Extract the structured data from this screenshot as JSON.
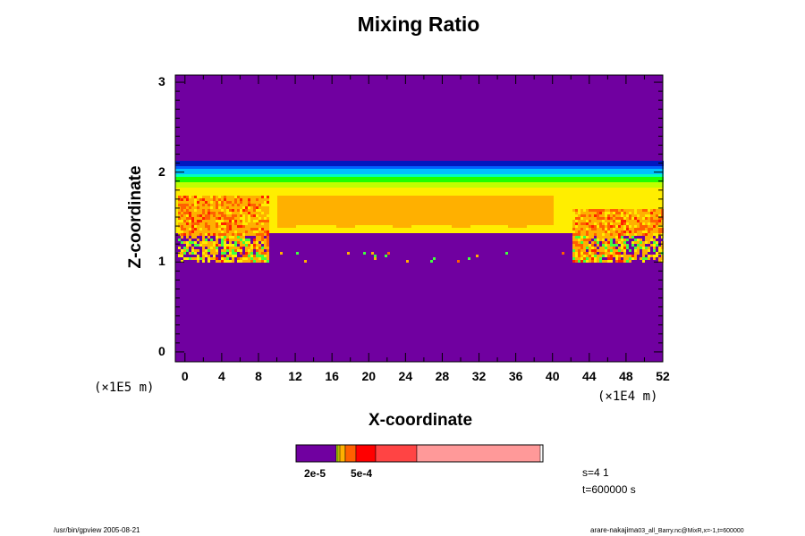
{
  "chart_data": {
    "type": "heatmap",
    "title": "Mixing Ratio",
    "xlabel": "X-coordinate",
    "ylabel": "Z-coordinate",
    "x_unit": "(×1E4 m)",
    "y_unit": "(×1E5 m)",
    "xlim": [
      -1.05,
      52
    ],
    "ylim": [
      -0.11,
      3.08
    ],
    "x_ticks": [
      "0",
      "4",
      "8",
      "12",
      "16",
      "20",
      "24",
      "28",
      "32",
      "36",
      "40",
      "44",
      "48",
      "52"
    ],
    "y_ticks": [
      "0",
      "1",
      "2",
      "3"
    ],
    "background_color": "#7000a0",
    "vertical_profile": [
      {
        "z_range": [
          2.13,
          3.08
        ],
        "color": "#7000a0"
      },
      {
        "z_range": [
          2.09,
          2.13
        ],
        "color": "#0018c0"
      },
      {
        "z_range": [
          2.04,
          2.09
        ],
        "color": "#0060ff"
      },
      {
        "z_range": [
          2.0,
          2.04
        ],
        "color": "#00c0ff"
      },
      {
        "z_range": [
          1.96,
          2.0
        ],
        "color": "#00ffc0"
      },
      {
        "z_range": [
          1.9,
          1.96
        ],
        "color": "#20ff00"
      },
      {
        "z_range": [
          1.85,
          1.9
        ],
        "color": "#c0ff00"
      },
      {
        "z_range": [
          1.33,
          1.85
        ],
        "color": "#ffee00"
      },
      {
        "z_range": [
          -0.11,
          1.33
        ],
        "color": "#7000a0"
      }
    ],
    "core_region": {
      "x_range": [
        10,
        40
      ],
      "z_range": [
        1.42,
        1.76
      ],
      "color": "#ffb000"
    },
    "turbulent_edges": [
      {
        "x_range": [
          -1,
          9
        ],
        "z_range": [
          1.0,
          1.75
        ]
      },
      {
        "x_range": [
          42,
          52
        ],
        "z_range": [
          1.0,
          1.6
        ]
      }
    ],
    "colorbar": {
      "colors": [
        "#7000a0",
        "#c0ff00",
        "#ffee00",
        "#ffb000",
        "#ff6000",
        "#ff0000",
        "#ff4444",
        "#ff9999"
      ],
      "labels": [
        "2e-5",
        "5e-4"
      ]
    }
  },
  "info": {
    "s": "s=4 1",
    "t": "t=600000 s"
  },
  "footer": {
    "left": "/usr/bin/gpview 2005-08-21",
    "right_user": "arare-nakajima",
    "right_file": "03_all_Barry.nc@MixR,x=-1,t=600000"
  }
}
